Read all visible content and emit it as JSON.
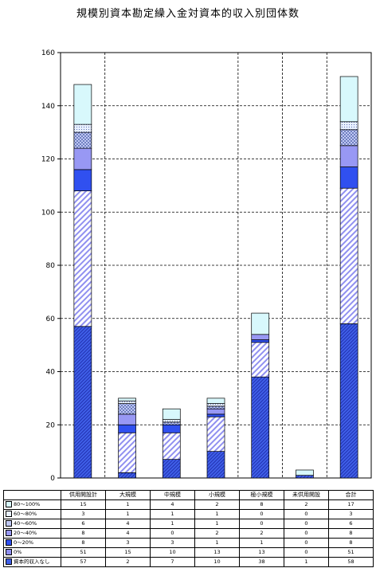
{
  "chart_data": {
    "type": "bar",
    "stacked": true,
    "title": "規模別資本勘定繰入金対資本的収入別団体数",
    "ylim": [
      0,
      160
    ],
    "yticks": [
      0,
      20,
      40,
      60,
      80,
      100,
      120,
      140,
      160
    ],
    "grid": true,
    "categories": [
      "供用開設計",
      "大規模",
      "中規模",
      "小規模",
      "極小規模",
      "未供用開設",
      "合計"
    ],
    "series": [
      {
        "name": "資本的収入なし",
        "values": [
          57,
          2,
          7,
          10,
          38,
          1,
          58
        ],
        "color": "#4060e8",
        "pattern": "dense"
      },
      {
        "name": "0%",
        "values": [
          51,
          15,
          10,
          13,
          13,
          0,
          51
        ],
        "color": "#9090f0",
        "pattern": "diag"
      },
      {
        "name": "0～20%",
        "values": [
          8,
          3,
          3,
          1,
          1,
          0,
          8
        ],
        "color": "#3050f0",
        "pattern": "solid"
      },
      {
        "name": "20～40%",
        "values": [
          8,
          4,
          0,
          2,
          2,
          0,
          8
        ],
        "color": "#9898f4",
        "pattern": "solid"
      },
      {
        "name": "40～60%",
        "values": [
          6,
          4,
          1,
          1,
          0,
          0,
          6
        ],
        "color": "#c0c8f4",
        "pattern": "check"
      },
      {
        "name": "60～80%",
        "values": [
          3,
          1,
          1,
          1,
          0,
          0,
          3
        ],
        "color": "#e8f0ff",
        "pattern": "dots"
      },
      {
        "name": "80～100%",
        "values": [
          15,
          1,
          4,
          2,
          8,
          2,
          17
        ],
        "color": "#d8f8fc",
        "pattern": "solid"
      }
    ]
  },
  "table_order": [
    6,
    5,
    4,
    3,
    2,
    1,
    0
  ]
}
